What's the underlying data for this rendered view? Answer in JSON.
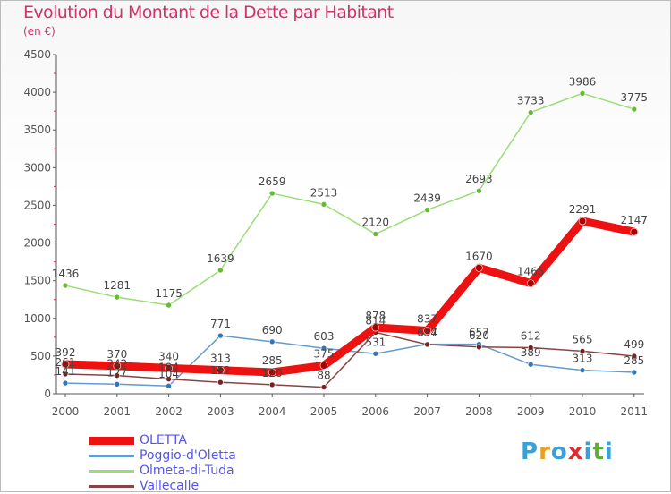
{
  "header": {
    "title": "Evolution du Montant de la Dette par Habitant",
    "unit": "(en €)"
  },
  "logo": {
    "letters": [
      "P",
      "r",
      "o",
      "x",
      "i",
      "t",
      "i"
    ],
    "colors": [
      "#3aa0d8",
      "#e8a020",
      "#3aa0d8",
      "#d83030",
      "#3aa0d8",
      "#5ab030",
      "#3aa0d8"
    ]
  },
  "colors": {
    "title": "#cc3366",
    "legend_text": "#5555ee",
    "grid_tick": "#cc3366",
    "axis": "#555555"
  },
  "chart_data": {
    "type": "line",
    "title": "Evolution du Montant de la Dette par Habitant",
    "ylabel": "(en €)",
    "xlabel": "",
    "ylim": [
      0,
      4500
    ],
    "yticks": [
      0,
      500,
      1000,
      1500,
      2000,
      2500,
      3000,
      3500,
      4000,
      4500
    ],
    "x": [
      "2000",
      "2001",
      "2002",
      "2003",
      "2004",
      "2005",
      "2006",
      "2007",
      "2008",
      "2009",
      "2010",
      "2011"
    ],
    "legend_position": "bottom-left",
    "series": [
      {
        "name": "OLETTA",
        "color": "#ee1111",
        "marker": "#aa0000",
        "values": [
          392,
          370,
          340,
          313,
          285,
          375,
          878,
          837,
          1670,
          1465,
          2291,
          2147
        ],
        "labels": [
          "392",
          "370",
          "340",
          "313",
          "285",
          "375",
          "878",
          "837",
          "1670",
          "1465",
          "2291",
          "2147"
        ]
      },
      {
        "name": "Poggio-d'Oletta",
        "color": "#6699cc",
        "marker": "#3377bb",
        "values": [
          141,
          127,
          104,
          771,
          690,
          603,
          531,
          657,
          657,
          389,
          313,
          285
        ],
        "labels": [
          "141",
          "127",
          "104",
          "771",
          "690",
          "603",
          "531",
          "657",
          "657",
          "389",
          "313",
          "285"
        ]
      },
      {
        "name": "Olmeta-di-Tuda",
        "color": "#99dd77",
        "marker": "#66bb33",
        "values": [
          1436,
          1281,
          1175,
          1639,
          2659,
          2513,
          2120,
          2439,
          2693,
          3733,
          3986,
          3775
        ],
        "labels": [
          "1436",
          "1281",
          "1175",
          "1639",
          "2659",
          "2513",
          "2120",
          "2439",
          "2693",
          "3733",
          "3986",
          "3775"
        ]
      },
      {
        "name": "Vallecalle",
        "color": "#884444",
        "marker": "#772222",
        "values": [
          261,
          242,
          194,
          152,
          120,
          88,
          814,
          654,
          620,
          612,
          565,
          499
        ],
        "labels": [
          "261",
          "242",
          "194",
          "152",
          "120",
          "88",
          "814",
          "654",
          "620",
          "612",
          "565",
          "499"
        ]
      }
    ]
  }
}
